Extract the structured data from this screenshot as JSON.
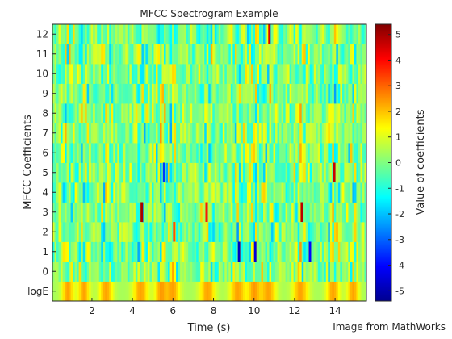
{
  "chart_data": {
    "type": "heatmap",
    "title": "MFCC Spectrogram Example",
    "xlabel": "Time (s)",
    "ylabel": "MFCC Coefficients",
    "xlim": [
      0.05,
      15.55
    ],
    "x_ticks": [
      2,
      4,
      6,
      8,
      10,
      12,
      14
    ],
    "y_categories": [
      "logE",
      "0",
      "1",
      "2",
      "3",
      "4",
      "5",
      "6",
      "7",
      "8",
      "9",
      "10",
      "11",
      "12"
    ],
    "colormap": "jet",
    "colorbar": {
      "label": "Value of coefficients",
      "range": [
        -5.4,
        5.4
      ],
      "ticks": [
        -5,
        -4,
        -3,
        -2,
        -1,
        0,
        1,
        2,
        3,
        4,
        5
      ]
    },
    "frame_step_s": 0.1,
    "grid": false,
    "legend": "none",
    "highlights": [
      {
        "time": 4.45,
        "coef": "3",
        "value": 5.0
      },
      {
        "time": 12.35,
        "coef": "3",
        "value": 4.8
      },
      {
        "time": 13.95,
        "coef": "5",
        "value": 4.6
      },
      {
        "time": 10.75,
        "coef": "12",
        "value": 4.5
      },
      {
        "time": 9.25,
        "coef": "1",
        "value": -4.8
      },
      {
        "time": 10.05,
        "coef": "1",
        "value": -4.5
      },
      {
        "time": 12.75,
        "coef": "1",
        "value": -4.0
      },
      {
        "time": 5.55,
        "coef": "5",
        "value": -3.5
      },
      {
        "time": 7.65,
        "coef": "3",
        "value": 3.8
      },
      {
        "time": 6.05,
        "coef": "2",
        "value": 3.2
      }
    ]
  },
  "credit": "Image from MathWorks"
}
